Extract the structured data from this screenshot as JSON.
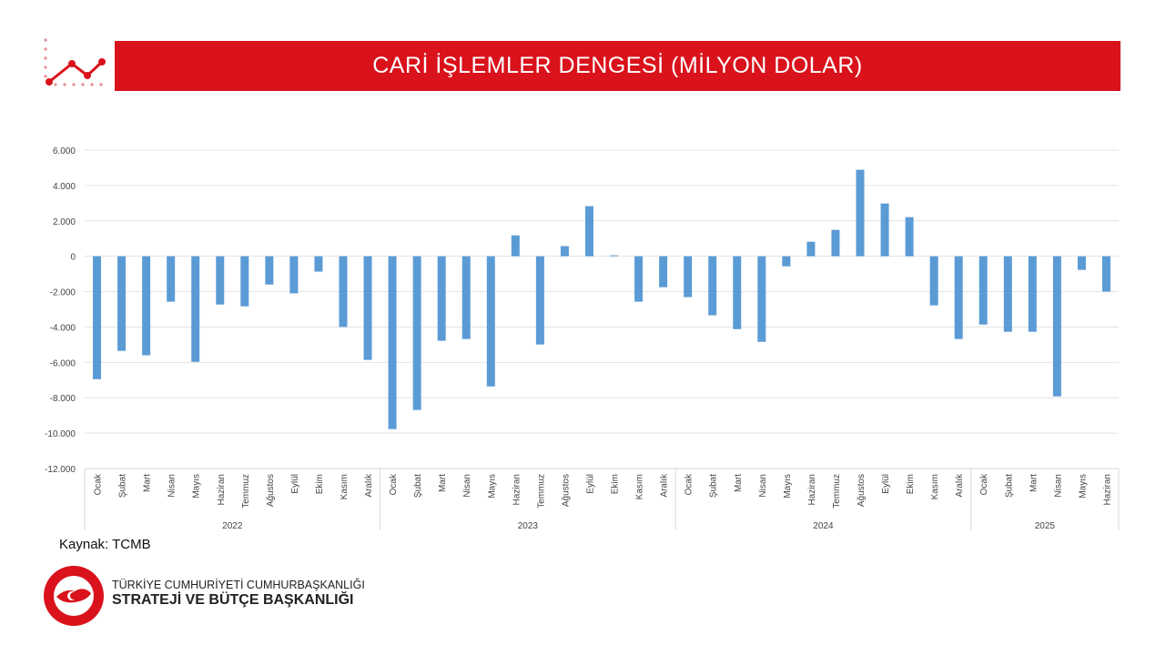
{
  "header": {
    "title": "CARİ İŞLEMLER DENGESİ (MİLYON DOLAR)"
  },
  "colors": {
    "banner": "#d9121b",
    "bar": "#5b9bd5",
    "grid": "#d9d9d9"
  },
  "source": "Kaynak: TCMB",
  "organization": {
    "line1": "TÜRKİYE CUMHURİYETİ CUMHURBAŞKANLIĞI",
    "line2": "STRATEJİ VE BÜTÇE BAŞKANLIĞI",
    "seal_text": "T.C. CUMHURBAŞKANLIĞI STRATEJİ VE BÜTÇE BAŞKANLIĞI"
  },
  "chart_data": {
    "type": "bar",
    "title": "CARİ İŞLEMLER DENGESİ (MİLYON DOLAR)",
    "xlabel": "",
    "ylabel": "",
    "ylim": [
      -12000,
      6000
    ],
    "yticks": [
      "6.000",
      "4.000",
      "2.000",
      "0",
      "-2.000",
      "-4.000",
      "-6.000",
      "-8.000",
      "-10.000",
      "-12.000"
    ],
    "ytick_values": [
      6000,
      4000,
      2000,
      0,
      -2000,
      -4000,
      -6000,
      -8000,
      -10000,
      -12000
    ],
    "groups": [
      {
        "year": "2022",
        "months": [
          "Ocak",
          "Şubat",
          "Mart",
          "Nisan",
          "Mayıs",
          "Haziran",
          "Temmuz",
          "Ağustos",
          "Eylül",
          "Ekim",
          "Kasım",
          "Aralık"
        ],
        "values": [
          -6950,
          -5350,
          -5600,
          -2570,
          -5970,
          -2730,
          -2830,
          -1600,
          -2100,
          -870,
          -4000,
          -5860
        ]
      },
      {
        "year": "2023",
        "months": [
          "Ocak",
          "Şubat",
          "Mart",
          "Nisan",
          "Mayıs",
          "Haziran",
          "Temmuz",
          "Ağustos",
          "Eylül",
          "Ekim",
          "Kasım",
          "Aralık"
        ],
        "values": [
          -9770,
          -8690,
          -4780,
          -4680,
          -7360,
          1180,
          -4990,
          570,
          2830,
          50,
          -2570,
          -1750
        ]
      },
      {
        "year": "2024",
        "months": [
          "Ocak",
          "Şubat",
          "Mart",
          "Nisan",
          "Mayıs",
          "Haziran",
          "Temmuz",
          "Ağustos",
          "Eylül",
          "Ekim",
          "Kasım",
          "Aralık"
        ],
        "values": [
          -2310,
          -3340,
          -4120,
          -4840,
          -570,
          820,
          1490,
          4890,
          2980,
          2210,
          -2780,
          -4680
        ]
      },
      {
        "year": "2025",
        "months": [
          "Ocak",
          "Şubat",
          "Mart",
          "Nisan",
          "Mayıs",
          "Haziran"
        ],
        "values": [
          -3860,
          -4270,
          -4270,
          -7920,
          -770,
          -2000
        ]
      }
    ],
    "grid": true,
    "legend": "none"
  }
}
